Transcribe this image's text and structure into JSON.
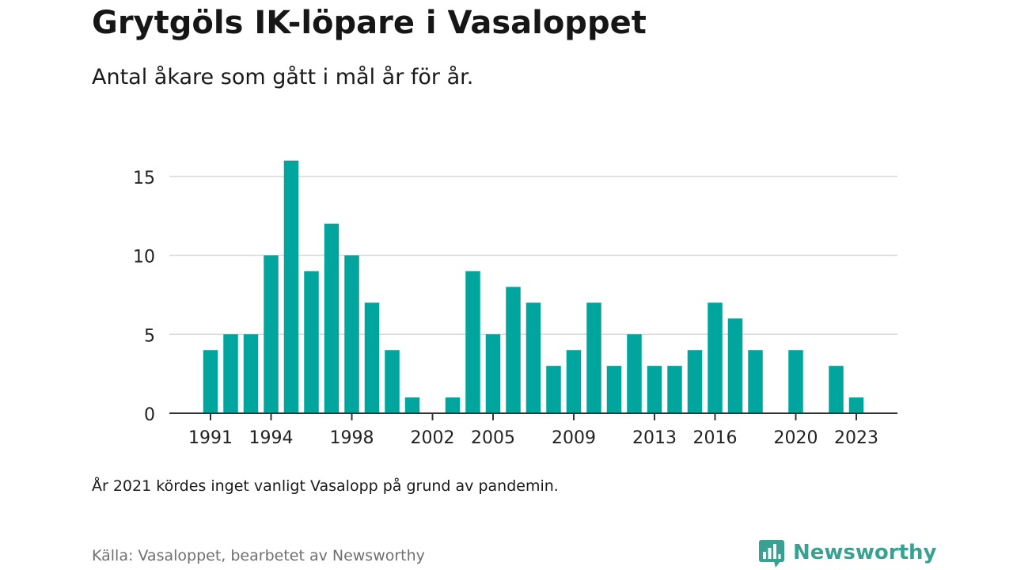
{
  "header": {
    "title": "Grytgöls IK-löpare i Vasaloppet",
    "subtitle": "Antal åkare som gått i mål år för år."
  },
  "footer": {
    "note": "År 2021 kördes inget vanligt Vasalopp på grund av pandemin.",
    "source": "Källa: Vasaloppet, bearbetet av Newsworthy",
    "brand": "Newsworthy",
    "brand_icon": "bar-chart-speech-icon"
  },
  "colors": {
    "bar": "#00a59d",
    "grid": "#d9d9d9",
    "axis": "#333333",
    "brand": "#3aa192"
  },
  "chart_data": {
    "type": "bar",
    "x": [
      1991,
      1992,
      1993,
      1994,
      1995,
      1996,
      1997,
      1998,
      1999,
      2000,
      2001,
      2002,
      2003,
      2004,
      2005,
      2006,
      2007,
      2008,
      2009,
      2010,
      2011,
      2012,
      2013,
      2014,
      2015,
      2016,
      2017,
      2018,
      2019,
      2020,
      2021,
      2022,
      2023
    ],
    "values": [
      4,
      5,
      5,
      10,
      16,
      9,
      12,
      10,
      7,
      4,
      1,
      0,
      1,
      9,
      5,
      8,
      7,
      3,
      4,
      7,
      3,
      5,
      3,
      3,
      4,
      7,
      6,
      4,
      0,
      4,
      0,
      3,
      1
    ],
    "xticks": [
      "1991",
      "1994",
      "1998",
      "2002",
      "2005",
      "2009",
      "2013",
      "2016",
      "2020",
      "2023"
    ],
    "yticks": [
      "0",
      "5",
      "10",
      "15"
    ],
    "ylim": [
      0,
      17
    ],
    "grid": true,
    "legend": false
  }
}
